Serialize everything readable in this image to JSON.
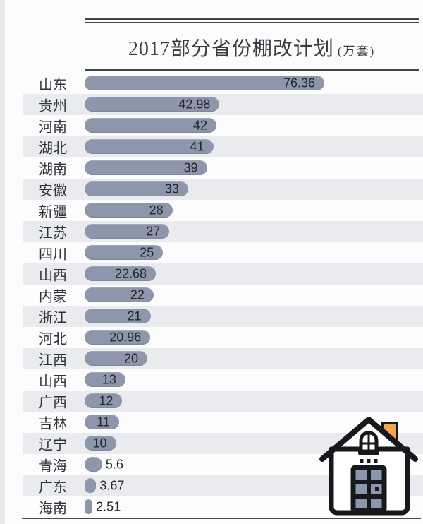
{
  "title": {
    "main": "2017部分省份棚改计划",
    "unit": "(万套)"
  },
  "chart_data": {
    "type": "bar",
    "orientation": "horizontal",
    "title": "2017部分省份棚改计划",
    "unit_label": "万套",
    "categories": [
      "山东",
      "贵州",
      "河南",
      "湖北",
      "湖南",
      "安徽",
      "新疆",
      "江苏",
      "四川",
      "山西",
      "内蒙",
      "浙江",
      "河北",
      "江西",
      "山西",
      "广西",
      "吉林",
      "辽宁",
      "青海",
      "广东",
      "海南"
    ],
    "values": [
      76.36,
      42.98,
      42,
      41,
      39,
      33,
      28,
      27,
      25,
      22.68,
      22,
      21,
      20.96,
      20,
      13,
      12,
      11,
      10,
      5.6,
      3.67,
      2.51
    ],
    "xlim": [
      0,
      80
    ],
    "value_labels_shown": true,
    "grid": false,
    "legend": false,
    "bar_color": "#8d96aa",
    "stripe_color": "#eaebee",
    "striped_rows": "even"
  },
  "icons": {
    "house": {
      "name": "house-icon",
      "outline_color": "#17181b",
      "chimney_color": "#f3a54e",
      "pane_color": "#8d97ac"
    }
  }
}
